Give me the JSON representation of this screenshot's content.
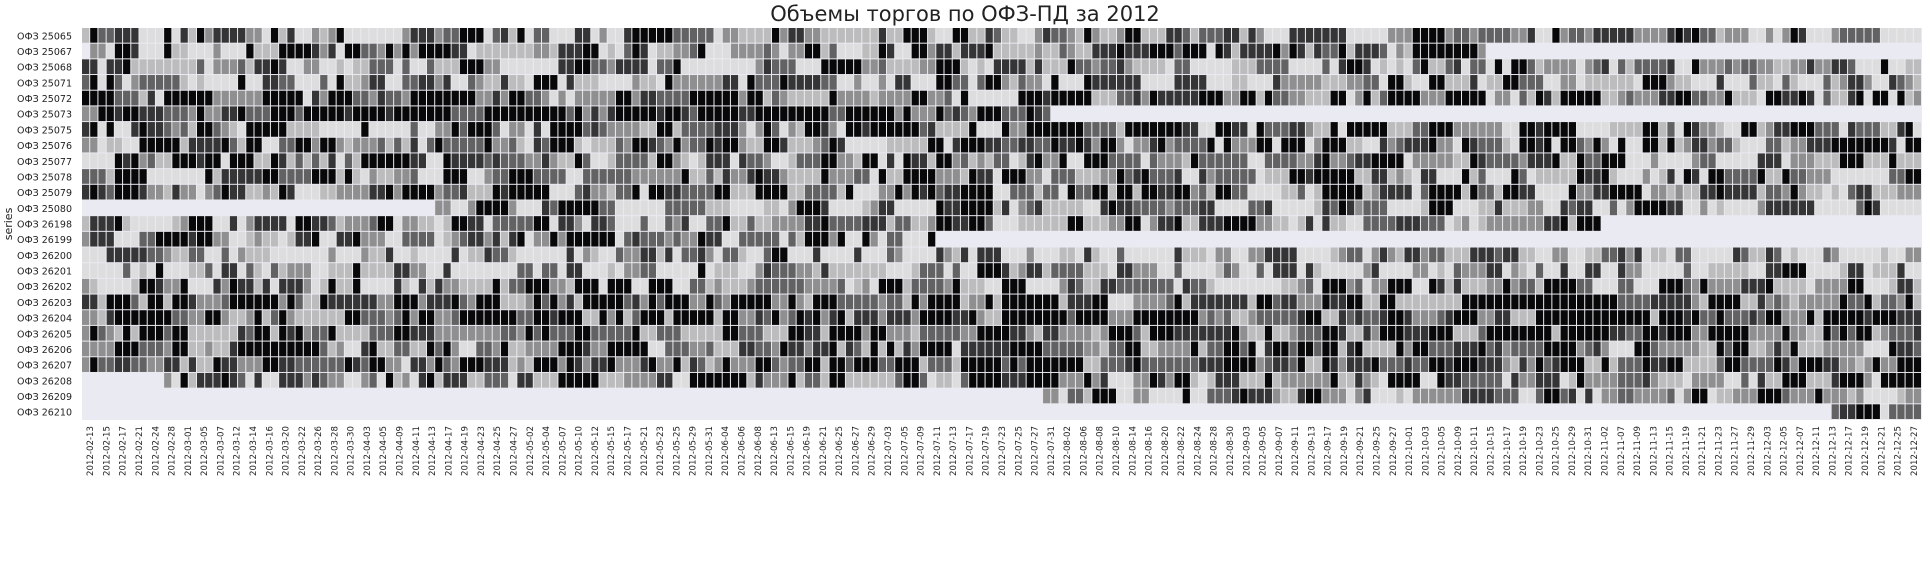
{
  "chart_data": {
    "type": "heatmap",
    "title": "Объемы торгов по ОФЗ-ПД за 2012",
    "ylabel": "series",
    "xlabel": "",
    "colormap": "greys",
    "missing_color": "#eaeaf2",
    "grid": true,
    "legend": "none",
    "series": [
      "ОФЗ 25065",
      "ОФЗ 25067",
      "ОФЗ 25068",
      "ОФЗ 25071",
      "ОФЗ 25072",
      "ОФЗ 25073",
      "ОФЗ 25075",
      "ОФЗ 25076",
      "ОФЗ 25077",
      "ОФЗ 25078",
      "ОФЗ 25079",
      "ОФЗ 25080",
      "ОФЗ 26198",
      "ОФЗ 26199",
      "ОФЗ 26200",
      "ОФЗ 26201",
      "ОФЗ 26202",
      "ОФЗ 26203",
      "ОФЗ 26204",
      "ОФЗ 26205",
      "ОФЗ 26206",
      "ОФЗ 26207",
      "ОФЗ 26208",
      "ОФЗ 26209",
      "ОФЗ 26210"
    ],
    "x_tick_labels": [
      "2012-02-13",
      "2012-02-15",
      "2012-02-17",
      "2012-02-21",
      "2012-02-24",
      "2012-02-28",
      "2012-03-01",
      "2012-03-05",
      "2012-03-07",
      "2012-03-12",
      "2012-03-14",
      "2012-03-16",
      "2012-03-20",
      "2012-03-22",
      "2012-03-26",
      "2012-03-28",
      "2012-03-30",
      "2012-04-03",
      "2012-04-05",
      "2012-04-09",
      "2012-04-11",
      "2012-04-13",
      "2012-04-17",
      "2012-04-19",
      "2012-04-23",
      "2012-04-25",
      "2012-04-27",
      "2012-05-02",
      "2012-05-04",
      "2012-05-07",
      "2012-05-10",
      "2012-05-12",
      "2012-05-15",
      "2012-05-17",
      "2012-05-21",
      "2012-05-23",
      "2012-05-25",
      "2012-05-29",
      "2012-05-31",
      "2012-06-04",
      "2012-06-06",
      "2012-06-08",
      "2012-06-13",
      "2012-06-15",
      "2012-06-19",
      "2012-06-21",
      "2012-06-25",
      "2012-06-27",
      "2012-06-29",
      "2012-07-03",
      "2012-07-05",
      "2012-07-09",
      "2012-07-11",
      "2012-07-13",
      "2012-07-17",
      "2012-07-19",
      "2012-07-23",
      "2012-07-25",
      "2012-07-27",
      "2012-07-31",
      "2012-08-02",
      "2012-08-06",
      "2012-08-08",
      "2012-08-10",
      "2012-08-14",
      "2012-08-16",
      "2012-08-20",
      "2012-08-22",
      "2012-08-24",
      "2012-08-28",
      "2012-08-30",
      "2012-09-03",
      "2012-09-05",
      "2012-09-07",
      "2012-09-11",
      "2012-09-13",
      "2012-09-17",
      "2012-09-19",
      "2012-09-21",
      "2012-09-25",
      "2012-09-27",
      "2012-10-01",
      "2012-10-03",
      "2012-10-05",
      "2012-10-09",
      "2012-10-11",
      "2012-10-15",
      "2012-10-17",
      "2012-10-19",
      "2012-10-23",
      "2012-10-25",
      "2012-10-29",
      "2012-10-31",
      "2012-11-02",
      "2012-11-07",
      "2012-11-09",
      "2012-11-13",
      "2012-11-15",
      "2012-11-19",
      "2012-11-21",
      "2012-11-23",
      "2012-11-27",
      "2012-11-29",
      "2012-12-03",
      "2012-12-05",
      "2012-12-07",
      "2012-12-11",
      "2012-12-13",
      "2012-12-17",
      "2012-12-19",
      "2012-12-21",
      "2012-12-25",
      "2012-12-27"
    ],
    "n_trading_days": 224,
    "trading_ranges": [
      [
        0,
        224
      ],
      [
        1,
        171
      ],
      [
        0,
        224
      ],
      [
        0,
        224
      ],
      [
        0,
        224
      ],
      [
        0,
        118
      ],
      [
        0,
        224
      ],
      [
        0,
        224
      ],
      [
        0,
        224
      ],
      [
        0,
        224
      ],
      [
        0,
        224
      ],
      [
        43,
        224
      ],
      [
        0,
        185
      ],
      [
        0,
        104
      ],
      [
        0,
        224
      ],
      [
        0,
        224
      ],
      [
        0,
        224
      ],
      [
        0,
        224
      ],
      [
        0,
        224
      ],
      [
        0,
        224
      ],
      [
        0,
        224
      ],
      [
        0,
        224
      ],
      [
        10,
        224
      ],
      [
        117,
        224
      ],
      [
        213,
        224
      ]
    ],
    "row_activity": [
      0.45,
      0.55,
      0.42,
      0.4,
      0.62,
      0.92,
      0.58,
      0.6,
      0.55,
      0.52,
      0.62,
      0.42,
      0.5,
      0.55,
      0.3,
      0.3,
      0.52,
      0.68,
      0.75,
      0.72,
      0.66,
      0.7,
      0.5,
      0.42,
      0.55
    ],
    "value_levels": [
      0.0,
      0.15,
      0.35,
      0.55,
      0.75,
      0.95
    ]
  }
}
